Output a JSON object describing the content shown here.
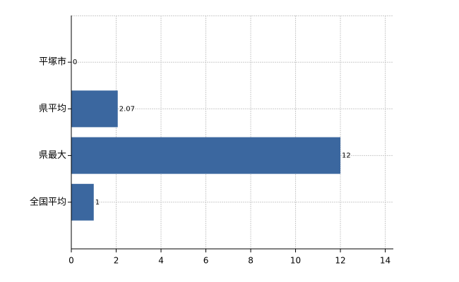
{
  "chart_data": {
    "type": "barh",
    "categories": [
      "平塚市",
      "県平均",
      "県最大",
      "全国平均"
    ],
    "values": [
      0,
      2.07,
      12,
      1
    ],
    "color": "#3b679f",
    "xlim": [
      0,
      14.36
    ],
    "xticks": [
      0,
      2,
      4,
      6,
      8,
      10,
      12,
      14
    ],
    "grid": true
  }
}
